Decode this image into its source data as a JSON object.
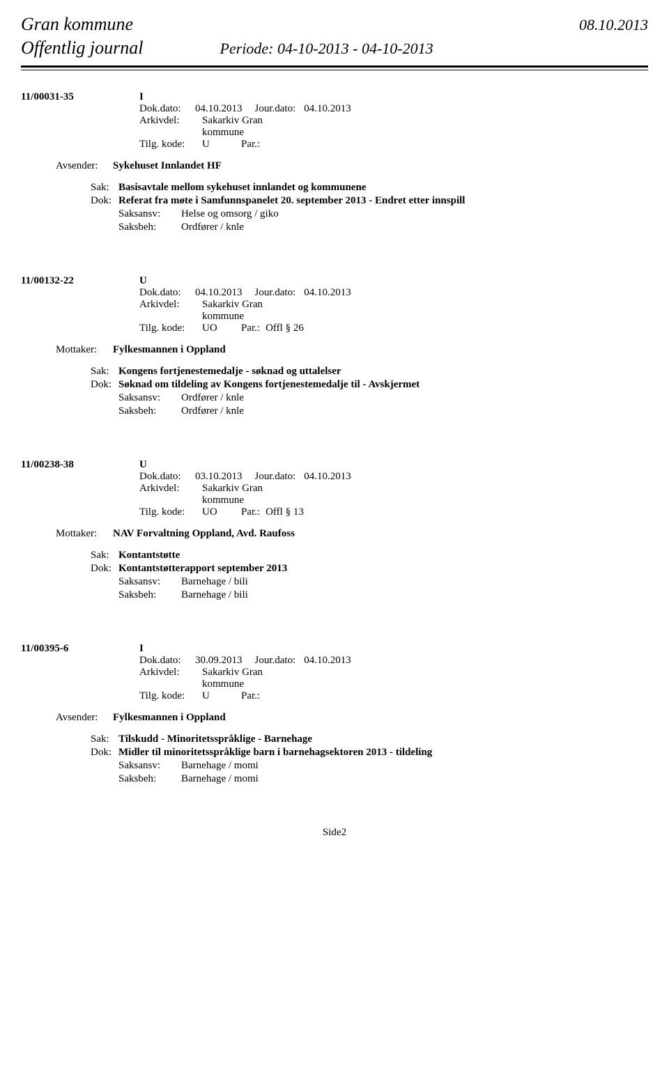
{
  "header": {
    "org": "Gran kommune",
    "date": "08.10.2013",
    "journal_title": "Offentlig journal",
    "period": "Periode: 04-10-2013 - 04-10-2013"
  },
  "labels": {
    "dokdato": "Dok.dato:",
    "jourdato": "Jour.dato:",
    "arkivdel": "Arkivdel:",
    "tilgkode": "Tilg. kode:",
    "par": "Par.:",
    "avsender": "Avsender:",
    "mottaker": "Mottaker:",
    "sak": "Sak:",
    "dok": "Dok:",
    "saksansv": "Saksansv:",
    "saksbeh": "Saksbeh:"
  },
  "entries": [
    {
      "case_id": "11/00031-35",
      "type": "I",
      "dokdato": "04.10.2013",
      "jourdato": "04.10.2013",
      "arkivdel": "Sakarkiv Gran kommune",
      "tilgkode": "U",
      "par": "",
      "party_label": "Avsender:",
      "party": "Sykehuset Innlandet HF",
      "sak": "Basisavtale mellom sykehuset innlandet og kommunene",
      "dok": "Referat fra møte i Samfunnspanelet 20. september 2013 - Endret etter innspill",
      "saksansv": "Helse og omsorg / giko",
      "saksbeh": "Ordfører / knle"
    },
    {
      "case_id": "11/00132-22",
      "type": "U",
      "dokdato": "04.10.2013",
      "jourdato": "04.10.2013",
      "arkivdel": "Sakarkiv Gran kommune",
      "tilgkode": "UO",
      "par": "Offl § 26",
      "party_label": "Mottaker:",
      "party": "Fylkesmannen i Oppland",
      "sak": "Kongens fortjenestemedalje - søknad og uttalelser",
      "dok": "Søknad om tildeling av Kongens fortjenestemedalje til    - Avskjermet",
      "saksansv": "Ordfører / knle",
      "saksbeh": "Ordfører / knle"
    },
    {
      "case_id": "11/00238-38",
      "type": "U",
      "dokdato": "03.10.2013",
      "jourdato": "04.10.2013",
      "arkivdel": "Sakarkiv Gran kommune",
      "tilgkode": "UO",
      "par": "Offl § 13",
      "party_label": "Mottaker:",
      "party": "NAV Forvaltning Oppland, Avd. Raufoss",
      "sak": "Kontantstøtte",
      "dok": "Kontantstøtterapport september 2013",
      "saksansv": "Barnehage / bili",
      "saksbeh": "Barnehage / bili"
    },
    {
      "case_id": "11/00395-6",
      "type": "I",
      "dokdato": "30.09.2013",
      "jourdato": "04.10.2013",
      "arkivdel": "Sakarkiv Gran kommune",
      "tilgkode": "U",
      "par": "",
      "party_label": "Avsender:",
      "party": "Fylkesmannen i Oppland",
      "sak": "Tilskudd - Minoritetsspråklige - Barnehage",
      "dok": "Midler til minoritetsspråklige barn i barnehagsektoren 2013 - tildeling",
      "saksansv": "Barnehage / momi",
      "saksbeh": "Barnehage / momi"
    }
  ],
  "footer": "Side2"
}
